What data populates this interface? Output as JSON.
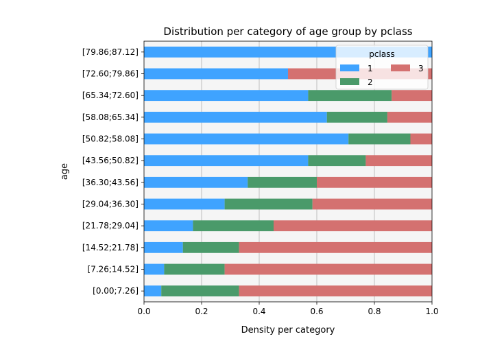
{
  "chart_data": {
    "type": "bar",
    "orientation": "horizontal",
    "stacked": true,
    "title": "Distribution per category of age group by pclass",
    "xlabel": "Density per category",
    "ylabel": "age",
    "xlim": [
      0,
      1
    ],
    "xticks": [
      "0.0",
      "0.2",
      "0.4",
      "0.6",
      "0.8",
      "1.0"
    ],
    "grid": "vertical",
    "legend_title": "pclass",
    "legend_position": "top-right",
    "categories": [
      "[0.00;7.26]",
      "[7.26;14.52]",
      "[14.52;21.78]",
      "[21.78;29.04]",
      "[29.04;36.30]",
      "[36.30;43.56]",
      "[43.56;50.82]",
      "[50.82;58.08]",
      "[58.08;65.34]",
      "[65.34;72.60]",
      "[72.60;79.86]",
      "[79.86;87.12]"
    ],
    "series": [
      {
        "name": "1",
        "color": "#3fa3ff",
        "values": [
          0.06,
          0.07,
          0.135,
          0.17,
          0.28,
          0.36,
          0.57,
          0.71,
          0.635,
          0.57,
          0.5,
          1.0
        ]
      },
      {
        "name": "2",
        "color": "#4a9a6a",
        "values": [
          0.27,
          0.21,
          0.195,
          0.28,
          0.305,
          0.24,
          0.2,
          0.215,
          0.21,
          0.29,
          0.0,
          0.0
        ]
      },
      {
        "name": "3",
        "color": "#d47170",
        "values": [
          0.67,
          0.72,
          0.67,
          0.55,
          0.415,
          0.4,
          0.23,
          0.075,
          0.155,
          0.14,
          0.5,
          0.0
        ]
      }
    ]
  }
}
